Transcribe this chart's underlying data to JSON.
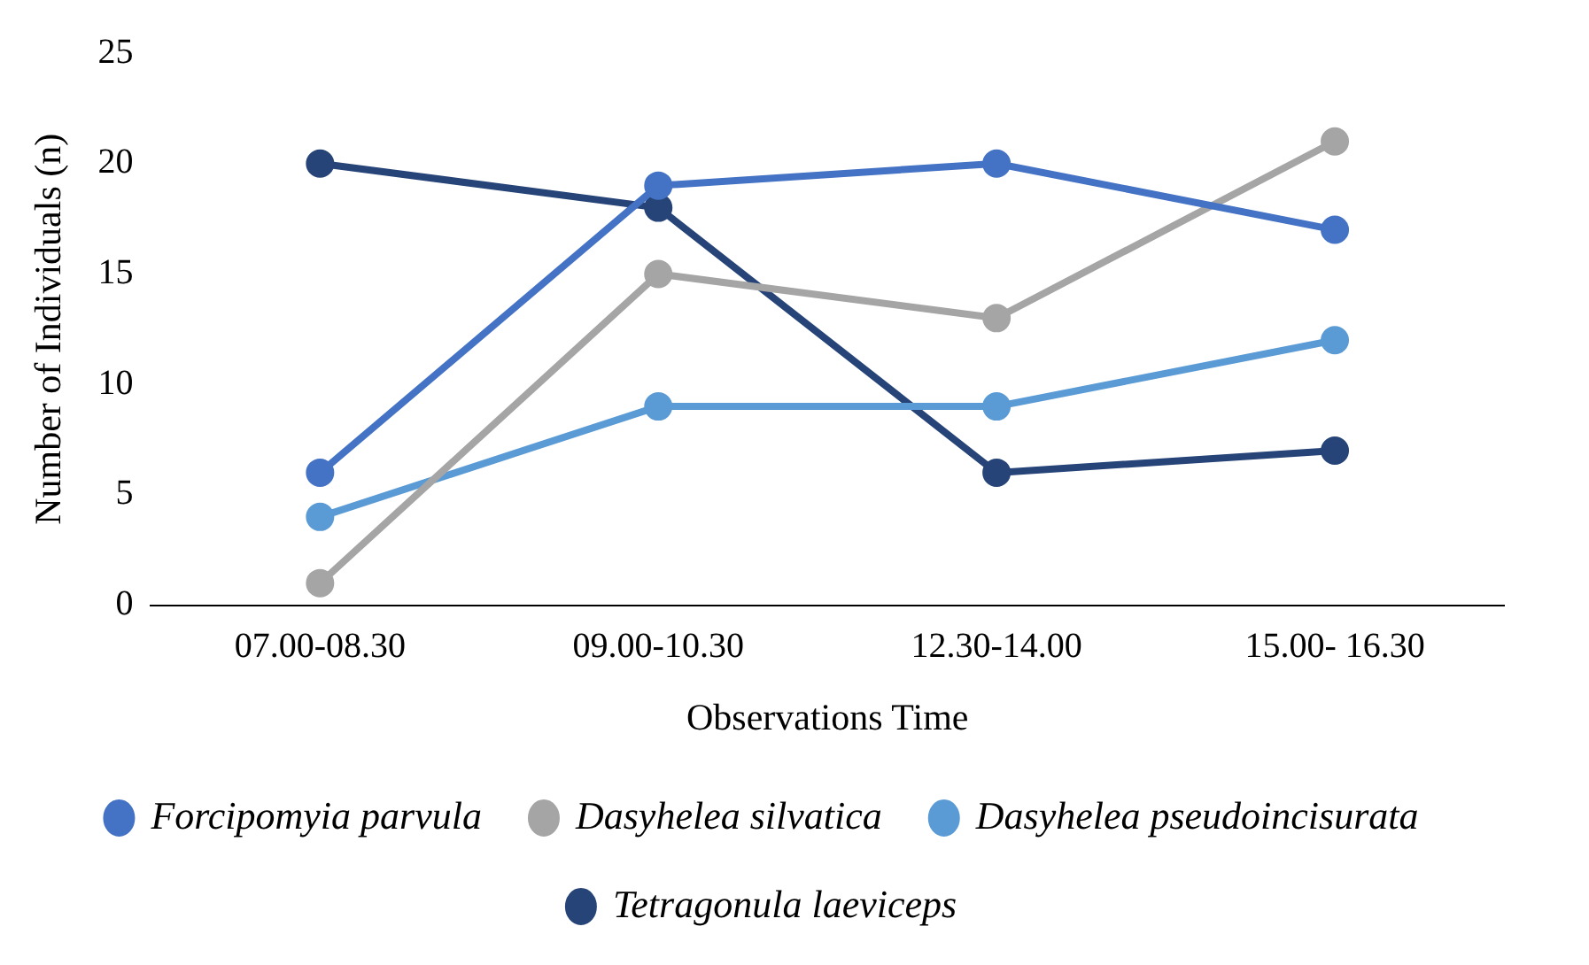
{
  "chart_data": {
    "type": "line",
    "xlabel": "Observations Time",
    "ylabel": "Number of Individuals (n)",
    "categories": [
      "07.00-08.30",
      "09.00-10.30",
      "12.30-14.00",
      "15.00- 16.30"
    ],
    "series": [
      {
        "name": "Forcipomyia parvula",
        "color": "#4472c4",
        "values": [
          6,
          19,
          20,
          17
        ]
      },
      {
        "name": "Dasyhelea silvatica",
        "color": "#a5a5a5",
        "values": [
          1,
          15,
          13,
          21
        ]
      },
      {
        "name": "Dasyhelea pseudoincisurata",
        "color": "#5b9bd5",
        "values": [
          4,
          9,
          9,
          12
        ]
      },
      {
        "name": "Tetragonula laeviceps",
        "color": "#264478",
        "values": [
          20,
          18,
          6,
          7
        ]
      }
    ],
    "ylim": [
      0,
      25
    ],
    "yticks": [
      0,
      5,
      10,
      15,
      20,
      25
    ],
    "grid": false,
    "legend": "bottom",
    "marker": "circle",
    "line_style": "solid"
  }
}
